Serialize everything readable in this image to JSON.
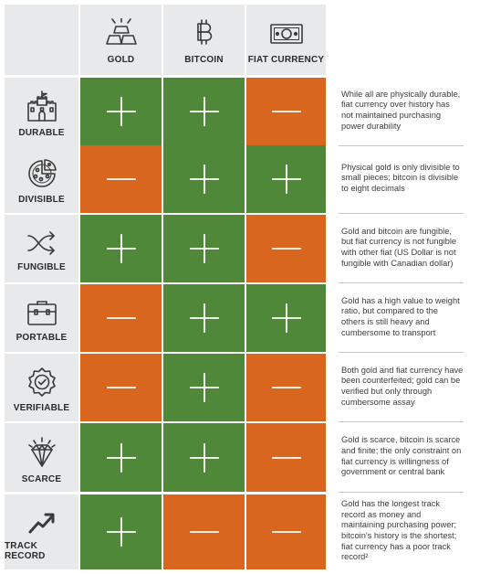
{
  "columns": [
    {
      "key": "gold",
      "label": "GOLD",
      "icon": "gold-bars-icon"
    },
    {
      "key": "bitcoin",
      "label": "BITCOIN",
      "icon": "bitcoin-icon"
    },
    {
      "key": "fiat",
      "label": "FIAT CURRENCY",
      "icon": "banknote-icon"
    }
  ],
  "rows": [
    {
      "key": "durable",
      "label": "DURABLE",
      "icon": "castle-icon",
      "marks": [
        "+",
        "+",
        "−"
      ],
      "description": "While all are physically durable, fiat currency over history has not maintained purchasing power durability"
    },
    {
      "key": "divisible",
      "label": "DIVISIBLE",
      "icon": "pizza-icon",
      "marks": [
        "−",
        "+",
        "+"
      ],
      "description": "Physical gold is only divisible to small pieces; bitcoin is divisible to eight decimals"
    },
    {
      "key": "fungible",
      "label": "FUNGIBLE",
      "icon": "shuffle-icon",
      "marks": [
        "+",
        "+",
        "−"
      ],
      "description": "Gold and bitcoin are fungible, but fiat currency is not fungible with other fiat (US Dollar is not fungible with Canadian dollar)"
    },
    {
      "key": "portable",
      "label": "PORTABLE",
      "icon": "briefcase-icon",
      "marks": [
        "−",
        "+",
        "+"
      ],
      "description": "Gold has a high value to weight ratio, but compared to the others is still heavy and cumbersome to transport"
    },
    {
      "key": "verifiable",
      "label": "VERIFIABLE",
      "icon": "verified-badge-icon",
      "marks": [
        "−",
        "+",
        "−"
      ],
      "description": "Both gold and fiat currency have been counterfeited; gold can be verified but only through cumbersome assay"
    },
    {
      "key": "scarce",
      "label": "SCARCE",
      "icon": "diamond-icon",
      "marks": [
        "+",
        "+",
        "−"
      ],
      "description": "Gold is scarce, bitcoin is scarce and finite; the only constraint on fiat currency is willingness of government or central bank"
    },
    {
      "key": "track_record",
      "label": "TRACK RECORD",
      "icon": "trend-arrow-icon",
      "marks": [
        "+",
        "−",
        "−"
      ],
      "description": "Gold has the longest track record as money and maintaining purchasing power; bitcoin's history is the shortest; fiat currency has a poor track record²"
    }
  ],
  "colors": {
    "positive": "#4e8838",
    "negative": "#d9661f",
    "header_bg": "#e8e9ea",
    "icon": "#3a3a3a"
  }
}
